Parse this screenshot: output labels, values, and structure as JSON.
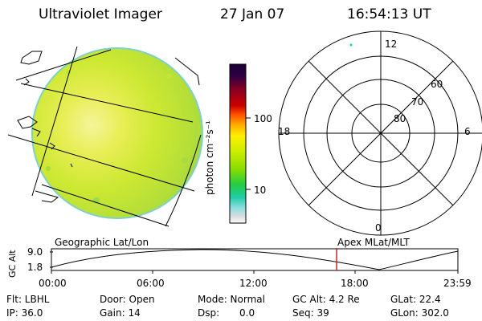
{
  "header": {
    "title": "Ultraviolet Imager",
    "date": "27 Jan 07",
    "time": "16:54:13 UT"
  },
  "colorbar": {
    "title": "photon cm⁻²s⁻¹",
    "tick_100": "100",
    "tick_10": "10",
    "colors": [
      "#1a0033",
      "#330044",
      "#880022",
      "#cc0000",
      "#ff6600",
      "#ffaa00",
      "#ffee00",
      "#ccee00",
      "#88dd00",
      "#22cc44",
      "#22ccaa",
      "#88dddd",
      "#dddddd",
      "#ffffff"
    ]
  },
  "polar_plot": {
    "label_12": "12",
    "label_18": "18",
    "label_6": "6",
    "label_0": "0",
    "label_60": "60",
    "label_70": "70",
    "label_80": "80"
  },
  "altitude_plot": {
    "left_caption": "Geographic Lat/Lon",
    "right_caption": "Apex MLat/MLT",
    "ylabel": "GC Alt",
    "y_top": "9.0",
    "y_bottom": "1.8",
    "x_ticks": [
      "00:00",
      "06:00",
      "12:00",
      "18:00",
      "23:59"
    ]
  },
  "info": {
    "flt": "Flt: LBHL",
    "ip": "IP: 36.0",
    "door": "Door: Open",
    "gain": "Gain: 14",
    "mode": "Mode: Normal",
    "dsp_label": "Dsp:",
    "dsp_value": "0.0",
    "gc_alt": "GC Alt: 4.2 Re",
    "seq": "Seq: 39",
    "glat": "GLat: 22.4",
    "glon": "GLon: 302.0"
  }
}
